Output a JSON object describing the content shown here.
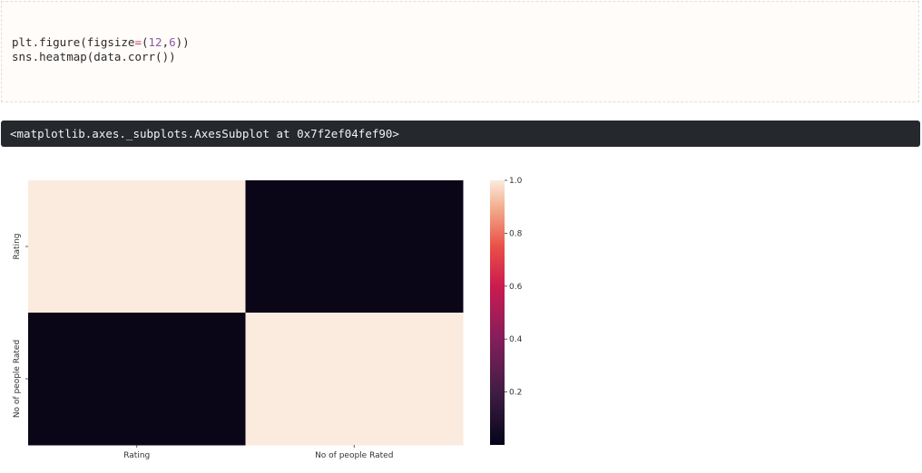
{
  "code_cell": {
    "lines": [
      "plt.figure(figsize=(12,6))",
      "sns.heatmap(data.corr())"
    ]
  },
  "output": {
    "text": "<matplotlib.axes._subplots.AxesSubplot at 0x7f2ef04fef90>"
  },
  "colors": {
    "cell_high": "#fbebde",
    "cell_low": "#0a0618"
  },
  "chart_data": {
    "type": "heatmap",
    "title": "",
    "xlabel": "",
    "ylabel": "",
    "x_categories": [
      "Rating",
      "No of people Rated"
    ],
    "y_categories": [
      "Rating",
      "No of people Rated"
    ],
    "values": [
      [
        1.0,
        0.0
      ],
      [
        0.0,
        1.0
      ]
    ],
    "colorbar": {
      "ticks": [
        0.2,
        0.4,
        0.6,
        0.8,
        1.0
      ],
      "tick_labels": [
        "0.2",
        "0.4",
        "0.6",
        "0.8",
        "1.0"
      ],
      "range": [
        0.0,
        1.0
      ]
    },
    "grid": false,
    "legend": "colorbar-right"
  }
}
